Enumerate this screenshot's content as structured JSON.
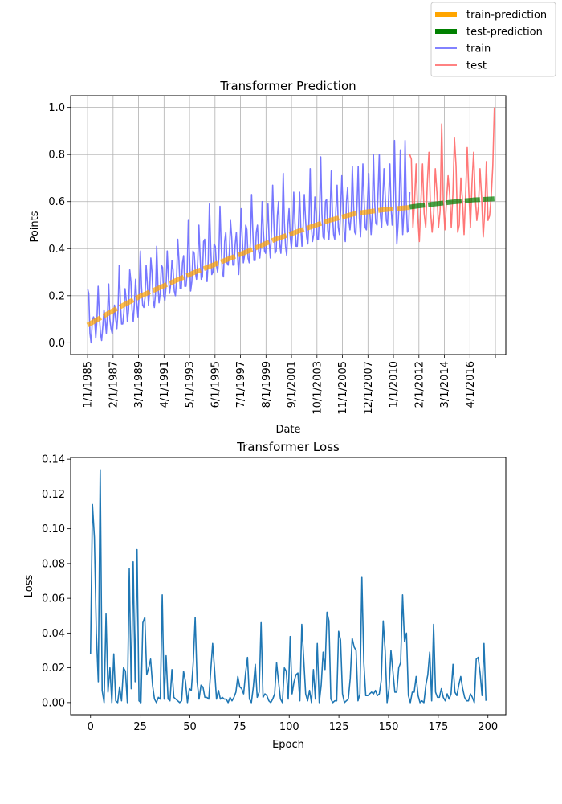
{
  "chart_data": [
    {
      "type": "line",
      "title": "Transformer Prediction",
      "xlabel": "Date",
      "ylabel": "Points",
      "ylim": [
        -0.05,
        1.05
      ],
      "yticks": [
        "0.0",
        "0.2",
        "0.4",
        "0.6",
        "0.8",
        "1.0"
      ],
      "xtick_labels": [
        "1/1/1985",
        "2/1/1987",
        "3/1/1989",
        "4/1/1991",
        "5/1/1993",
        "6/1/1995",
        "7/1/1997",
        "8/1/1999",
        "9/1/2001",
        "10/1/2003",
        "11/1/2005",
        "12/1/2007",
        "1/1/2010",
        "2/1/2012",
        "3/1/2014",
        "4/1/2016",
        ""
      ],
      "grid": true,
      "legend_position": "top-right",
      "legend": [
        {
          "label": "train-prediction",
          "color": "#ffa500",
          "style": "thick"
        },
        {
          "label": "test-prediction",
          "color": "#008000",
          "style": "thick"
        },
        {
          "label": "train",
          "color": "#7070ff",
          "style": "thin"
        },
        {
          "label": "test",
          "color": "#ff7070",
          "style": "thin"
        }
      ],
      "series": [
        {
          "name": "train",
          "color": "#7070ff",
          "x_range": [
            "1/1/1985",
            "5/1/2011"
          ],
          "values": [
            0.23,
            0.21,
            0.04,
            0.0,
            0.09,
            0.11,
            0.1,
            0.02,
            0.1,
            0.24,
            0.12,
            0.04,
            0.01,
            0.07,
            0.14,
            0.1,
            0.04,
            0.12,
            0.25,
            0.1,
            0.06,
            0.04,
            0.09,
            0.16,
            0.1,
            0.06,
            0.14,
            0.33,
            0.17,
            0.08,
            0.08,
            0.13,
            0.23,
            0.18,
            0.09,
            0.14,
            0.31,
            0.26,
            0.14,
            0.09,
            0.17,
            0.27,
            0.17,
            0.11,
            0.2,
            0.39,
            0.24,
            0.16,
            0.15,
            0.19,
            0.33,
            0.25,
            0.16,
            0.22,
            0.36,
            0.3,
            0.18,
            0.15,
            0.21,
            0.41,
            0.25,
            0.17,
            0.21,
            0.33,
            0.32,
            0.2,
            0.18,
            0.24,
            0.39,
            0.28,
            0.21,
            0.25,
            0.35,
            0.31,
            0.22,
            0.2,
            0.27,
            0.44,
            0.35,
            0.23,
            0.23,
            0.34,
            0.37,
            0.24,
            0.24,
            0.3,
            0.52,
            0.37,
            0.22,
            0.26,
            0.39,
            0.38,
            0.3,
            0.27,
            0.34,
            0.5,
            0.37,
            0.27,
            0.28,
            0.43,
            0.44,
            0.32,
            0.26,
            0.35,
            0.59,
            0.42,
            0.29,
            0.3,
            0.42,
            0.41,
            0.33,
            0.3,
            0.36,
            0.58,
            0.42,
            0.3,
            0.28,
            0.43,
            0.47,
            0.34,
            0.33,
            0.38,
            0.52,
            0.45,
            0.33,
            0.33,
            0.42,
            0.47,
            0.37,
            0.29,
            0.39,
            0.57,
            0.45,
            0.34,
            0.37,
            0.5,
            0.48,
            0.36,
            0.34,
            0.43,
            0.63,
            0.48,
            0.35,
            0.35,
            0.47,
            0.5,
            0.39,
            0.36,
            0.42,
            0.6,
            0.48,
            0.39,
            0.38,
            0.49,
            0.59,
            0.43,
            0.36,
            0.48,
            0.67,
            0.51,
            0.38,
            0.39,
            0.54,
            0.6,
            0.42,
            0.38,
            0.47,
            0.72,
            0.51,
            0.41,
            0.37,
            0.5,
            0.57,
            0.45,
            0.4,
            0.47,
            0.64,
            0.51,
            0.41,
            0.41,
            0.5,
            0.64,
            0.49,
            0.41,
            0.49,
            0.63,
            0.53,
            0.45,
            0.42,
            0.52,
            0.74,
            0.5,
            0.43,
            0.46,
            0.62,
            0.56,
            0.44,
            0.44,
            0.56,
            0.79,
            0.55,
            0.45,
            0.44,
            0.6,
            0.61,
            0.48,
            0.44,
            0.54,
            0.73,
            0.55,
            0.46,
            0.44,
            0.57,
            0.67,
            0.49,
            0.46,
            0.56,
            0.71,
            0.59,
            0.47,
            0.43,
            0.6,
            0.66,
            0.52,
            0.48,
            0.54,
            0.75,
            0.59,
            0.47,
            0.46,
            0.59,
            0.75,
            0.53,
            0.45,
            0.58,
            0.76,
            0.61,
            0.49,
            0.48,
            0.61,
            0.72,
            0.55,
            0.46,
            0.55,
            0.8,
            0.6,
            0.51,
            0.5,
            0.65,
            0.8,
            0.54,
            0.49,
            0.61,
            0.74,
            0.63,
            0.52,
            0.5,
            0.62,
            0.76,
            0.58,
            0.5,
            0.57,
            0.86,
            0.6,
            0.42,
            0.5,
            0.6,
            0.82,
            0.6,
            0.46,
            0.56,
            0.86,
            0.6,
            0.47,
            0.48,
            0.64
          ]
        },
        {
          "name": "test",
          "color": "#ff7070",
          "x_range": [
            "5/1/2011",
            "4/1/2018"
          ],
          "values": [
            0.8,
            0.78,
            0.49,
            0.6,
            0.76,
            0.54,
            0.43,
            0.6,
            0.76,
            0.55,
            0.49,
            0.68,
            0.81,
            0.56,
            0.47,
            0.55,
            0.74,
            0.64,
            0.49,
            0.56,
            0.93,
            0.6,
            0.48,
            0.6,
            0.71,
            0.63,
            0.49,
            0.63,
            0.87,
            0.75,
            0.47,
            0.5,
            0.7,
            0.61,
            0.46,
            0.63,
            0.83,
            0.64,
            0.49,
            0.68,
            0.81,
            0.62,
            0.52,
            0.58,
            0.74,
            0.62,
            0.45,
            0.56,
            0.77,
            0.52,
            0.54,
            0.62,
            0.75,
            1.0
          ]
        },
        {
          "name": "train-prediction",
          "color": "#ffa500",
          "x_range": [
            "1/1/1985",
            "5/1/2011"
          ],
          "values": [
            0.075,
            0.14,
            0.2,
            0.25,
            0.3,
            0.345,
            0.39,
            0.44,
            0.48,
            0.52,
            0.55,
            0.565,
            0.575
          ]
        },
        {
          "name": "test-prediction",
          "color": "#008000",
          "x_range": [
            "5/1/2011",
            "4/1/2018"
          ],
          "values": [
            0.577,
            0.588,
            0.598,
            0.607,
            0.612
          ]
        }
      ]
    },
    {
      "type": "line",
      "title": "Transformer Loss",
      "xlabel": "Epoch",
      "ylabel": "Loss",
      "xlim": [
        -10,
        209
      ],
      "ylim": [
        -0.007,
        0.141
      ],
      "xticks": [
        "0",
        "25",
        "50",
        "75",
        "100",
        "125",
        "150",
        "175",
        "200"
      ],
      "yticks": [
        "0.00",
        "0.02",
        "0.04",
        "0.06",
        "0.08",
        "0.10",
        "0.12",
        "0.14"
      ],
      "grid": false,
      "series": [
        {
          "name": "",
          "color": "#1f77b4",
          "x_range": [
            0,
            199
          ],
          "values": [
            0.028,
            0.114,
            0.095,
            0.04,
            0.012,
            0.134,
            0.007,
            0.0,
            0.051,
            0.006,
            0.02,
            0.0,
            0.028,
            0.001,
            0.0,
            0.009,
            0.001,
            0.02,
            0.018,
            0.0,
            0.077,
            0.008,
            0.081,
            0.012,
            0.088,
            0.001,
            0.0,
            0.046,
            0.049,
            0.016,
            0.02,
            0.025,
            0.01,
            0.002,
            0.0,
            0.003,
            0.002,
            0.062,
            0.002,
            0.027,
            0.002,
            0.001,
            0.019,
            0.003,
            0.002,
            0.001,
            0.0,
            0.001,
            0.018,
            0.012,
            0.0,
            0.008,
            0.007,
            0.023,
            0.049,
            0.012,
            0.002,
            0.01,
            0.009,
            0.003,
            0.003,
            0.002,
            0.018,
            0.034,
            0.019,
            0.002,
            0.007,
            0.002,
            0.003,
            0.002,
            0.002,
            0.0,
            0.003,
            0.001,
            0.003,
            0.006,
            0.015,
            0.009,
            0.008,
            0.005,
            0.017,
            0.026,
            0.002,
            0.0,
            0.009,
            0.022,
            0.003,
            0.006,
            0.046,
            0.003,
            0.005,
            0.004,
            0.001,
            0.0,
            0.002,
            0.005,
            0.023,
            0.012,
            0.002,
            0.0,
            0.02,
            0.018,
            0.002,
            0.038,
            0.005,
            0.012,
            0.016,
            0.017,
            0.001,
            0.045,
            0.025,
            0.005,
            0.001,
            0.007,
            0.0,
            0.019,
            0.002,
            0.034,
            0.0,
            0.01,
            0.029,
            0.019,
            0.052,
            0.047,
            0.002,
            0.0,
            0.001,
            0.001,
            0.041,
            0.036,
            0.005,
            0.0,
            0.001,
            0.002,
            0.014,
            0.037,
            0.032,
            0.03,
            0.001,
            0.005,
            0.072,
            0.023,
            0.004,
            0.004,
            0.005,
            0.006,
            0.005,
            0.007,
            0.004,
            0.005,
            0.013,
            0.047,
            0.03,
            0.0,
            0.008,
            0.03,
            0.018,
            0.006,
            0.006,
            0.02,
            0.023,
            0.062,
            0.035,
            0.04,
            0.004,
            0.0,
            0.006,
            0.006,
            0.015,
            0.004,
            0.0,
            0.001,
            0.0,
            0.01,
            0.016,
            0.029,
            0.001,
            0.045,
            0.006,
            0.003,
            0.003,
            0.008,
            0.003,
            0.001,
            0.005,
            0.002,
            0.005,
            0.022,
            0.006,
            0.004,
            0.01,
            0.015,
            0.008,
            0.003,
            0.001,
            0.001,
            0.005,
            0.003,
            0.0,
            0.025,
            0.026,
            0.017,
            0.004,
            0.034,
            0.001
          ]
        }
      ]
    }
  ]
}
